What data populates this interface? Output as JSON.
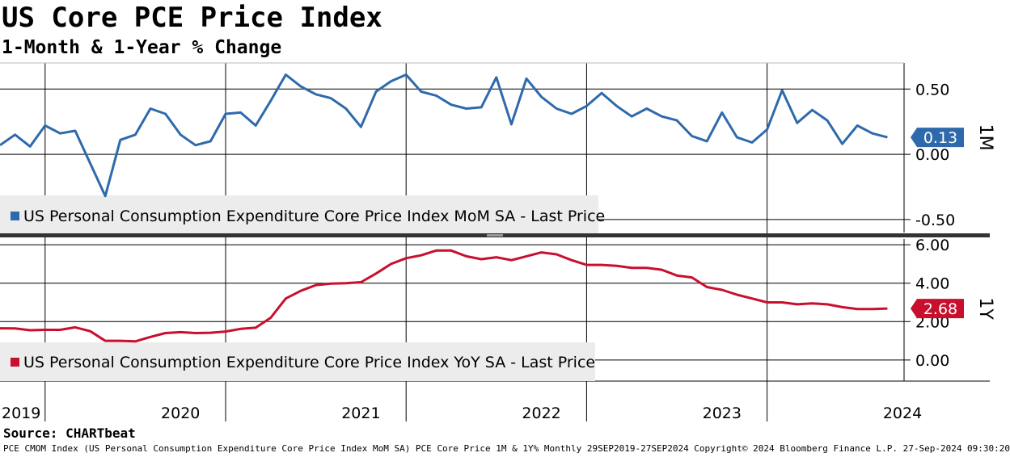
{
  "title": "US Core PCE Price Index",
  "subtitle": "1-Month & 1-Year % Change",
  "source": "Source: CHARTbeat",
  "footer": "PCE CMOM Index (US Personal Consumption Expenditure Core Price Index MoM SA) PCE Core Price 1M & 1Y%  Monthly 29SEP2019-27SEP2024 Copyright© 2024 Bloomberg Finance L.P. 27-Sep-2024 09:30:20",
  "colors": {
    "mom": "#2e6aab",
    "yoy": "#c8102e",
    "legend_bg": "#ececec"
  },
  "chart_data": [
    {
      "type": "line",
      "axis_side": "right",
      "axis_label": "1M",
      "ylim": [
        -0.6,
        0.7
      ],
      "yticks": [
        0.5,
        0.0,
        -0.5
      ],
      "ytick_labels": [
        "0.50",
        "0.00",
        "-0.50"
      ],
      "grid": true,
      "legend": "US Personal Consumption Expenditure Core Price Index MoM SA - Last Price",
      "legend_position": "bottom-left",
      "last_value_label": "0.13",
      "series": [
        {
          "values": [
            0.07,
            0.15,
            0.06,
            0.22,
            0.16,
            0.18,
            -0.07,
            -0.32,
            0.11,
            0.15,
            0.35,
            0.31,
            0.15,
            0.07,
            0.1,
            0.31,
            0.32,
            0.22,
            0.41,
            0.61,
            0.52,
            0.46,
            0.43,
            0.35,
            0.21,
            0.48,
            0.56,
            0.61,
            0.48,
            0.45,
            0.38,
            0.35,
            0.36,
            0.59,
            0.23,
            0.58,
            0.44,
            0.35,
            0.31,
            0.37,
            0.47,
            0.37,
            0.29,
            0.35,
            0.29,
            0.26,
            0.14,
            0.1,
            0.32,
            0.13,
            0.09,
            0.19,
            0.49,
            0.24,
            0.34,
            0.26,
            0.08,
            0.22,
            0.16,
            0.13
          ]
        }
      ]
    },
    {
      "type": "line",
      "axis_side": "right",
      "axis_label": "1Y",
      "ylim": [
        -1.1,
        6.3
      ],
      "yticks": [
        6.0,
        4.0,
        2.0,
        0.0
      ],
      "ytick_labels": [
        "6.00",
        "4.00",
        "2.00",
        "0.00"
      ],
      "grid": true,
      "legend": "US Personal Consumption Expenditure Core Price Index YoY SA - Last Price",
      "legend_position": "bottom-left",
      "last_value_label": "2.68",
      "series": [
        {
          "values": [
            1.65,
            1.64,
            1.55,
            1.57,
            1.57,
            1.7,
            1.5,
            1.0,
            1.0,
            0.97,
            1.2,
            1.4,
            1.45,
            1.4,
            1.42,
            1.48,
            1.62,
            1.68,
            2.2,
            3.2,
            3.6,
            3.9,
            3.98,
            4.0,
            4.05,
            4.5,
            5.0,
            5.3,
            5.45,
            5.7,
            5.7,
            5.4,
            5.25,
            5.35,
            5.2,
            5.4,
            5.6,
            5.5,
            5.2,
            4.95,
            4.95,
            4.9,
            4.8,
            4.8,
            4.7,
            4.4,
            4.3,
            3.8,
            3.65,
            3.4,
            3.2,
            3.0,
            3.0,
            2.9,
            2.95,
            2.9,
            2.75,
            2.65,
            2.65,
            2.68
          ]
        }
      ]
    }
  ],
  "x_axis": {
    "labels": [
      "2019",
      "2020",
      "2021",
      "2022",
      "2023",
      "2024"
    ],
    "label_months": [
      -1,
      6,
      18,
      30,
      42,
      54
    ],
    "year_boundary_months": [
      3,
      15,
      27,
      39,
      51
    ]
  }
}
